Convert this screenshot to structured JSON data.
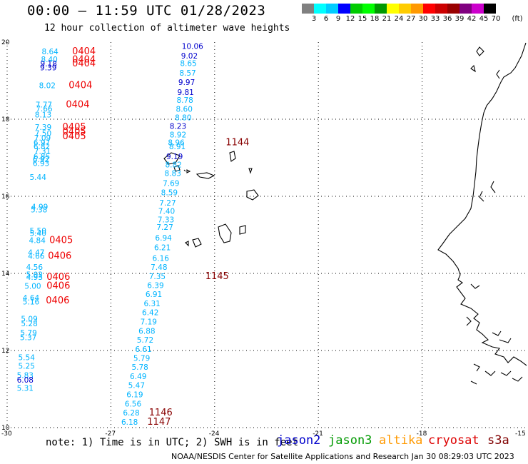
{
  "header": {
    "title": "00:00 – 11:59 UTC 01/28/2023",
    "subtitle": "12 hour collection of altimeter wave heights"
  },
  "colorbar": {
    "colors": [
      "#808080",
      "#00ffff",
      "#00ccff",
      "#0000ff",
      "#00cc00",
      "#00ff00",
      "#009900",
      "#ffff00",
      "#ffcc00",
      "#ff9900",
      "#ff0000",
      "#cc0000",
      "#990000",
      "#800080",
      "#cc00cc",
      "#000000"
    ],
    "labels": [
      "3",
      "6",
      "9",
      "12",
      "15",
      "18",
      "21",
      "24",
      "27",
      "30",
      "33",
      "36",
      "39",
      "42",
      "45",
      "70",
      "(ft)"
    ]
  },
  "axes": {
    "lat_labels": [
      "20",
      "18",
      "16",
      "14",
      "12",
      "10"
    ],
    "lon_labels": [
      "-30",
      "-27",
      "-24",
      "-21",
      "-18",
      "-15"
    ]
  },
  "satellites": {
    "jason2": {
      "label": "jason2",
      "color": "#0000cc"
    },
    "jason3": {
      "label": "jason3",
      "color": "#009900"
    },
    "altika": {
      "label": "altika",
      "color": "#ff9900"
    },
    "cryosat": {
      "label": "cryosat",
      "color": "#dd0000"
    },
    "s3a": {
      "label": "s3a",
      "color": "#800000"
    }
  },
  "colors": {
    "light": "#00b4ff",
    "dark": "#0000cc",
    "pass_red": "#ee0000",
    "pass_maroon": "#880000"
  },
  "wave_labels": {
    "track_east": [
      {
        "v": "10.06",
        "lon": -24.95,
        "lat": 19.9,
        "c": "dark"
      },
      {
        "v": "9.02",
        "lon": -24.97,
        "lat": 19.65,
        "c": "dark"
      },
      {
        "v": "8.65",
        "lon": -25.0,
        "lat": 19.45,
        "c": "light"
      },
      {
        "v": "8.57",
        "lon": -25.02,
        "lat": 19.2,
        "c": "light"
      },
      {
        "v": "9.97",
        "lon": -25.05,
        "lat": 18.96,
        "c": "dark"
      },
      {
        "v": "9.81",
        "lon": -25.08,
        "lat": 18.7,
        "c": "dark"
      },
      {
        "v": "8.78",
        "lon": -25.1,
        "lat": 18.5,
        "c": "light"
      },
      {
        "v": "8.60",
        "lon": -25.12,
        "lat": 18.27,
        "c": "light"
      },
      {
        "v": "8.80",
        "lon": -25.15,
        "lat": 18.05,
        "c": "light"
      },
      {
        "v": "8.23",
        "lon": -25.3,
        "lat": 17.82,
        "c": "dark"
      },
      {
        "v": "8.92",
        "lon": -25.3,
        "lat": 17.6,
        "c": "light"
      },
      {
        "v": "8.96",
        "lon": -25.35,
        "lat": 17.4,
        "c": "light"
      },
      {
        "v": "8.91",
        "lon": -25.32,
        "lat": 17.3,
        "c": "light"
      },
      {
        "v": "9.19",
        "lon": -25.4,
        "lat": 17.04,
        "c": "dark"
      },
      {
        "v": "8.82",
        "lon": -25.43,
        "lat": 16.82,
        "c": "light"
      },
      {
        "v": "8.83",
        "lon": -25.45,
        "lat": 16.6,
        "c": "light"
      },
      {
        "v": "7.69",
        "lon": -25.5,
        "lat": 16.34,
        "c": "light"
      },
      {
        "v": "8.59",
        "lon": -25.55,
        "lat": 16.1,
        "c": "light"
      },
      {
        "v": "7.27",
        "lon": -25.6,
        "lat": 15.83,
        "c": "light"
      },
      {
        "v": "7.40",
        "lon": -25.63,
        "lat": 15.62,
        "c": "light"
      },
      {
        "v": "7.33",
        "lon": -25.65,
        "lat": 15.4,
        "c": "light"
      },
      {
        "v": "7.27",
        "lon": -25.68,
        "lat": 15.2,
        "c": "light"
      },
      {
        "v": "6.94",
        "lon": -25.72,
        "lat": 14.93,
        "c": "light"
      },
      {
        "v": "6.21",
        "lon": -25.75,
        "lat": 14.68,
        "c": "light"
      },
      {
        "v": "6.16",
        "lon": -25.8,
        "lat": 14.4,
        "c": "light"
      },
      {
        "v": "7.48",
        "lon": -25.85,
        "lat": 14.17,
        "c": "light"
      },
      {
        "v": "7.35",
        "lon": -25.9,
        "lat": 13.93,
        "c": "light"
      },
      {
        "v": "6.39",
        "lon": -25.95,
        "lat": 13.69,
        "c": "light"
      },
      {
        "v": "6.91",
        "lon": -26.0,
        "lat": 13.46,
        "c": "light"
      },
      {
        "v": "6.31",
        "lon": -26.05,
        "lat": 13.22,
        "c": "light"
      },
      {
        "v": "6.42",
        "lon": -26.1,
        "lat": 12.99,
        "c": "light"
      },
      {
        "v": "7.19",
        "lon": -26.15,
        "lat": 12.75,
        "c": "light"
      },
      {
        "v": "6.88",
        "lon": -26.2,
        "lat": 12.51,
        "c": "light"
      },
      {
        "v": "5.72",
        "lon": -26.25,
        "lat": 12.28,
        "c": "light"
      },
      {
        "v": "6.61",
        "lon": -26.3,
        "lat": 12.04,
        "c": "light"
      },
      {
        "v": "5.79",
        "lon": -26.35,
        "lat": 11.81,
        "c": "light"
      },
      {
        "v": "5.78",
        "lon": -26.4,
        "lat": 11.57,
        "c": "light"
      },
      {
        "v": "6.49",
        "lon": -26.45,
        "lat": 11.33,
        "c": "light"
      },
      {
        "v": "5.47",
        "lon": -26.5,
        "lat": 11.1,
        "c": "light"
      },
      {
        "v": "6.19",
        "lon": -26.55,
        "lat": 10.86,
        "c": "light"
      },
      {
        "v": "6.56",
        "lon": -26.6,
        "lat": 10.62,
        "c": "light"
      },
      {
        "v": "6.28",
        "lon": -26.65,
        "lat": 10.39,
        "c": "light"
      },
      {
        "v": "6.18",
        "lon": -26.7,
        "lat": 10.15,
        "c": "light"
      }
    ],
    "track_west": [
      {
        "v": "8.64",
        "lon": -29.0,
        "lat": 19.76,
        "c": "light"
      },
      {
        "v": "8.40",
        "lon": -29.02,
        "lat": 19.56,
        "c": "light"
      },
      {
        "v": "9.18",
        "lon": -29.04,
        "lat": 19.44,
        "c": "dark"
      },
      {
        "v": "9.39",
        "lon": -29.05,
        "lat": 19.34,
        "c": "dark"
      },
      {
        "v": "8.02",
        "lon": -29.08,
        "lat": 18.88,
        "c": "light"
      },
      {
        "v": "7.77",
        "lon": -29.18,
        "lat": 18.38,
        "c": "light"
      },
      {
        "v": "7.66",
        "lon": -29.17,
        "lat": 18.28,
        "c": "light"
      },
      {
        "v": "8.13",
        "lon": -29.2,
        "lat": 18.12,
        "c": "light"
      },
      {
        "v": "7.39",
        "lon": -29.2,
        "lat": 17.8,
        "c": "light"
      },
      {
        "v": "7.50",
        "lon": -29.2,
        "lat": 17.64,
        "c": "light"
      },
      {
        "v": "7.09",
        "lon": -29.22,
        "lat": 17.52,
        "c": "light"
      },
      {
        "v": "6.97",
        "lon": -29.24,
        "lat": 17.4,
        "c": "light"
      },
      {
        "v": "6.82",
        "lon": -29.24,
        "lat": 17.3,
        "c": "light"
      },
      {
        "v": "7.31",
        "lon": -29.22,
        "lat": 17.18,
        "c": "light"
      },
      {
        "v": "6.85",
        "lon": -29.24,
        "lat": 17.04,
        "c": "light"
      },
      {
        "v": "6.92",
        "lon": -29.26,
        "lat": 16.96,
        "c": "light"
      },
      {
        "v": "6.93",
        "lon": -29.26,
        "lat": 16.86,
        "c": "light"
      },
      {
        "v": "5.44",
        "lon": -29.35,
        "lat": 16.5,
        "c": "light"
      },
      {
        "v": "4.99",
        "lon": -29.3,
        "lat": 15.73,
        "c": "light"
      },
      {
        "v": "5.38",
        "lon": -29.32,
        "lat": 15.66,
        "c": "light"
      },
      {
        "v": "5.50",
        "lon": -29.35,
        "lat": 15.11,
        "c": "light"
      },
      {
        "v": "5.40",
        "lon": -29.35,
        "lat": 15.05,
        "c": "light"
      },
      {
        "v": "4.84",
        "lon": -29.37,
        "lat": 14.86,
        "c": "light"
      },
      {
        "v": "4.47",
        "lon": -29.4,
        "lat": 14.55,
        "c": "light"
      },
      {
        "v": "4.66",
        "lon": -29.4,
        "lat": 14.45,
        "c": "light"
      },
      {
        "v": "4.56",
        "lon": -29.45,
        "lat": 14.17,
        "c": "light"
      },
      {
        "v": "5.02",
        "lon": -29.45,
        "lat": 13.97,
        "c": "light"
      },
      {
        "v": "4.93",
        "lon": -29.45,
        "lat": 13.91,
        "c": "light"
      },
      {
        "v": "5.00",
        "lon": -29.5,
        "lat": 13.68,
        "c": "light"
      },
      {
        "v": "4.64",
        "lon": -29.55,
        "lat": 13.37,
        "c": "light"
      },
      {
        "v": "5.16",
        "lon": -29.55,
        "lat": 13.27,
        "c": "light"
      },
      {
        "v": "5.09",
        "lon": -29.6,
        "lat": 12.82,
        "c": "light"
      },
      {
        "v": "5.28",
        "lon": -29.6,
        "lat": 12.7,
        "c": "light"
      },
      {
        "v": "5.79",
        "lon": -29.62,
        "lat": 12.46,
        "c": "light"
      },
      {
        "v": "5.37",
        "lon": -29.63,
        "lat": 12.34,
        "c": "light"
      },
      {
        "v": "5.54",
        "lon": -29.68,
        "lat": 11.82,
        "c": "light"
      },
      {
        "v": "5.25",
        "lon": -29.68,
        "lat": 11.6,
        "c": "light"
      },
      {
        "v": "5.83",
        "lon": -29.72,
        "lat": 11.36,
        "c": "light"
      },
      {
        "v": "6.08",
        "lon": -29.72,
        "lat": 11.24,
        "c": "dark"
      },
      {
        "v": "5.31",
        "lon": -29.72,
        "lat": 11.03,
        "c": "light"
      }
    ],
    "pass_times": [
      {
        "v": "0404",
        "lon": -28.12,
        "lat": 19.76,
        "c": "pass_red"
      },
      {
        "v": "0404",
        "lon": -28.12,
        "lat": 19.55,
        "c": "pass_red"
      },
      {
        "v": "0404",
        "lon": -28.12,
        "lat": 19.44,
        "c": "pass_red"
      },
      {
        "v": "0404",
        "lon": -28.22,
        "lat": 18.88,
        "c": "pass_red"
      },
      {
        "v": "0404",
        "lon": -28.3,
        "lat": 18.38,
        "c": "pass_red"
      },
      {
        "v": "0405",
        "lon": -28.4,
        "lat": 17.8,
        "c": "pass_red"
      },
      {
        "v": "0405",
        "lon": -28.4,
        "lat": 17.68,
        "c": "pass_red"
      },
      {
        "v": "0405",
        "lon": -28.4,
        "lat": 17.56,
        "c": "pass_red"
      },
      {
        "v": "0405",
        "lon": -28.78,
        "lat": 14.86,
        "c": "pass_red"
      },
      {
        "v": "0406",
        "lon": -28.82,
        "lat": 14.45,
        "c": "pass_red"
      },
      {
        "v": "0406",
        "lon": -28.86,
        "lat": 13.91,
        "c": "pass_red"
      },
      {
        "v": "0406",
        "lon": -28.86,
        "lat": 13.68,
        "c": "pass_red"
      },
      {
        "v": "0406",
        "lon": -28.88,
        "lat": 13.3,
        "c": "pass_red"
      },
      {
        "v": "1144",
        "lon": -23.68,
        "lat": 17.4,
        "c": "pass_maroon"
      },
      {
        "v": "1145",
        "lon": -24.27,
        "lat": 13.93,
        "c": "pass_maroon"
      },
      {
        "v": "1146",
        "lon": -25.9,
        "lat": 10.39,
        "c": "pass_maroon"
      },
      {
        "v": "1147",
        "lon": -25.95,
        "lat": 10.15,
        "c": "pass_maroon"
      }
    ]
  },
  "footer": {
    "note": "note: 1) Time is in UTC; 2) SWH is in feet",
    "credit": "NOAA/NESDIS Center for Satellite Applications and Research    Jan 30 08:29:03 UTC 2023"
  }
}
